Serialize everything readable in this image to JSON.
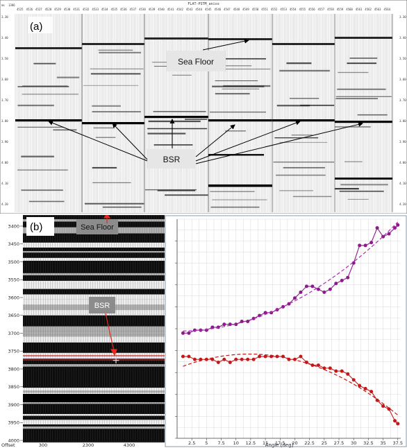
{
  "panel_a": {
    "letter": "(a)",
    "title": "FLAT-PSTM_aniso",
    "corner_ms": "ms",
    "corner_num": "1386",
    "trace_header": [
      "4525",
      "4526",
      "4527",
      "4528",
      "4529",
      "4530",
      "4531",
      "4532",
      "4533",
      "4534",
      "4535",
      "4536",
      "4537",
      "4538",
      "4539",
      "4540",
      "4541",
      "4542",
      "4543",
      "4544",
      "4545",
      "4546",
      "4547",
      "4548",
      "4549",
      "4550",
      "4551",
      "4552",
      "4553",
      "4554",
      "4555",
      "4556",
      "4557",
      "4558",
      "4559",
      "4560",
      "4561",
      "4562",
      "4563",
      "4564"
    ],
    "time_labels": [
      "3.30",
      "3.40",
      "3.50",
      "3.60",
      "3.70",
      "3.80",
      "3.90",
      "4.00",
      "4.10",
      "4.20"
    ],
    "sea_floor_label": "Sea Floor",
    "bsr_label": "BSR",
    "colors": {
      "annotation_box": "#e6e6e6",
      "arrow": "#000000"
    }
  },
  "panel_b": {
    "letter": "(b)",
    "sea_floor_label": "Sea Floor",
    "bsr_label": "BSR",
    "depth_labels": [
      "3400",
      "3450",
      "3500",
      "3550",
      "3600",
      "3650",
      "3700",
      "3750",
      "3800",
      "3850",
      "3900",
      "3950",
      "4000"
    ],
    "offset_title": "Offset",
    "offset_labels": [
      "300",
      "2300",
      "4300"
    ],
    "arrow_color": "#e8281e",
    "marker_line_color": "#cc2222"
  },
  "chart_data": {
    "type": "scatter",
    "xlabel": "Angle [deg]",
    "xlim": [
      0,
      38
    ],
    "x_ticks": [
      "2.5",
      "5",
      "7.5",
      "10",
      "12.5",
      "15",
      "17.5",
      "20",
      "22.5",
      "25",
      "27.5",
      "30",
      "32.5",
      "35",
      "37.5"
    ],
    "series": [
      {
        "color": "#8b1a8b",
        "x": [
          1,
          2,
          3,
          4,
          5,
          6,
          7,
          8,
          9,
          10,
          11,
          12,
          13,
          14,
          15,
          16,
          17,
          18,
          19,
          20,
          21,
          22,
          23,
          24,
          25,
          26,
          27,
          28,
          29,
          30,
          31,
          32,
          33,
          34,
          35,
          36,
          37,
          37.5
        ],
        "y": [
          0.06,
          0.06,
          0.07,
          0.07,
          0.07,
          0.08,
          0.08,
          0.09,
          0.09,
          0.09,
          0.1,
          0.1,
          0.11,
          0.12,
          0.13,
          0.13,
          0.14,
          0.15,
          0.16,
          0.18,
          0.2,
          0.22,
          0.22,
          0.21,
          0.2,
          0.21,
          0.23,
          0.24,
          0.25,
          0.3,
          0.36,
          0.36,
          0.37,
          0.42,
          0.39,
          0.4,
          0.42,
          0.43
        ]
      },
      {
        "color": "#c21818",
        "x": [
          1,
          2,
          3,
          4,
          5,
          6,
          7,
          8,
          9,
          10,
          11,
          12,
          13,
          14,
          15,
          16,
          17,
          18,
          19,
          20,
          21,
          22,
          23,
          24,
          25,
          26,
          27,
          28,
          29,
          30,
          31,
          32,
          33,
          34,
          35,
          36,
          37,
          37.5
        ],
        "y": [
          -0.02,
          -0.02,
          -0.03,
          -0.03,
          -0.03,
          -0.03,
          -0.04,
          -0.03,
          -0.04,
          -0.03,
          -0.03,
          -0.03,
          -0.03,
          -0.02,
          -0.02,
          -0.02,
          -0.02,
          -0.02,
          -0.03,
          -0.03,
          -0.02,
          -0.04,
          -0.05,
          -0.05,
          -0.06,
          -0.06,
          -0.07,
          -0.07,
          -0.08,
          -0.1,
          -0.12,
          -0.13,
          -0.14,
          -0.17,
          -0.19,
          -0.2,
          -0.24,
          -0.25
        ]
      }
    ],
    "trend_lines": [
      {
        "color": "#b22ab2",
        "style": "dashed"
      },
      {
        "color": "#c21818",
        "style": "dashed"
      }
    ],
    "grid": true
  }
}
